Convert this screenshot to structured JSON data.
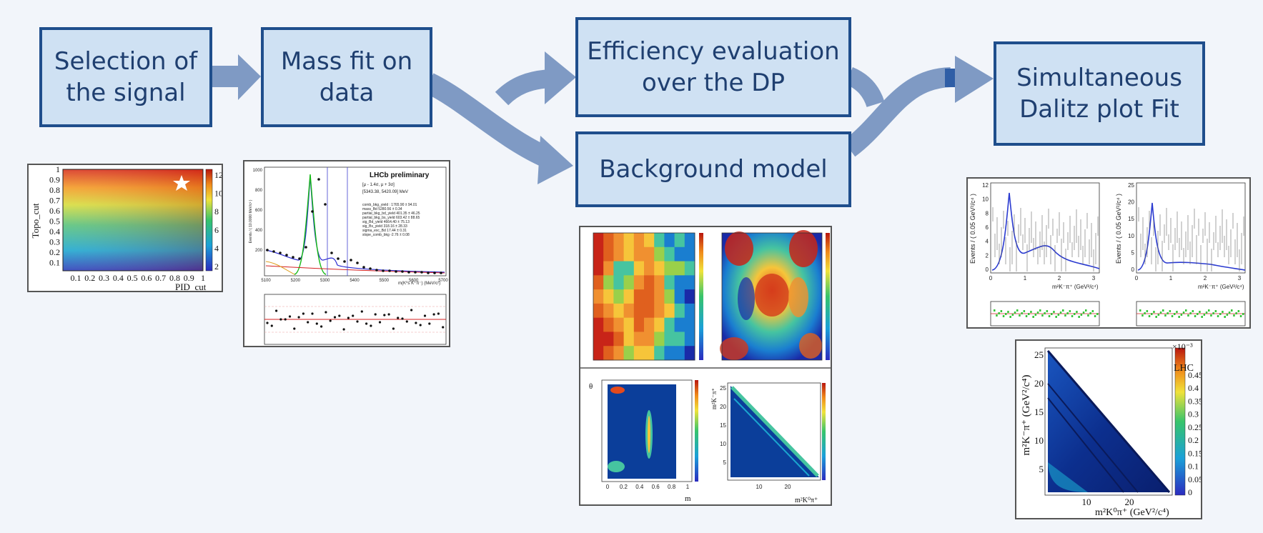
{
  "steps": {
    "selection": "Selection of\nthe signal",
    "mass_fit": "Mass fit on\ndata",
    "efficiency": "Efficiency evaluation\nover the DP",
    "background": "Background model",
    "dalitz_fit": "Simultaneous\nDalitz plot Fit"
  },
  "colors": {
    "box_fill": "#cfe1f3",
    "box_border": "#1f4e8c",
    "box_text": "#1f3f70",
    "arrow": "#7f9ac4"
  },
  "thumbnails": {
    "selection_plot": {
      "ylabel": "Topo_cut",
      "xlabel": "PID_cut",
      "yticks": [
        "1",
        "0.9",
        "0.8",
        "0.7",
        "0.6",
        "0.5",
        "0.4",
        "0.3",
        "0.2",
        "0.1"
      ],
      "xticks": [
        "0.1",
        "0.2",
        "0.3",
        "0.4",
        "0.5",
        "0.6",
        "0.7",
        "0.8",
        "0.9",
        "1"
      ],
      "zticks": [
        "12",
        "10",
        "8",
        "6",
        "4",
        "2"
      ]
    },
    "mass_fit_plot": {
      "legend_title": "LHCb preliminary",
      "ylabel": "Events / ( 10.0000 MeV/c² )",
      "xlabel": "m(K⁰s K⁺π⁻) (MeV/c²)",
      "xticks": [
        "5100",
        "5200",
        "5300",
        "5400",
        "5500",
        "5600",
        "5700"
      ],
      "yticks": [
        "1000",
        "800",
        "600",
        "400",
        "200"
      ],
      "legend_entries": [
        "[μ - 1.4σ, μ + 3σ]",
        "[5343.38, 5420.09] MeV"
      ],
      "params": [
        "comb_bkg_yield   : 1765.90 ± 94.01",
        "mass_Bd   5280.56 ± 0.34",
        "partial_bkg_bd_yield  401.35 ± 46.25",
        "partial_bkg_bs_yield  603.42 ± 88.65",
        "sig_Bd_yield   4664.40 ± 75.13",
        "sig_Bs_yield   318.16 ± 28.33",
        "sigma_exc_Bd   17.44 ± 0.31",
        "slope_comb_bkg  -2.76 ± 0.08"
      ]
    },
    "efficiency_plot": {
      "xlabel_bottom_left": "m",
      "ylabel_bottom_left": "θ",
      "xlabel_bottom_right": "m²K⁰π⁺",
      "ylabel_bottom_right": "m²K⁻π⁺",
      "ticks_unit": [
        "0",
        "0.1",
        "0.2",
        "0.3",
        "0.4",
        "0.5",
        "0.6",
        "0.7",
        "0.8",
        "0.9",
        "1"
      ],
      "ticks_m": [
        "0",
        "0.2",
        "0.4",
        "0.6",
        "0.8",
        "1"
      ],
      "ticks_mass": [
        "10",
        "20"
      ],
      "yticks_mass": [
        "25",
        "20",
        "15",
        "10",
        "5"
      ]
    },
    "dalitz_fit_plots": {
      "ylabel": "Events / ( 0.05 GeV²/c⁴ )",
      "xlabel": "m²K⁻π⁺ (GeV²/c⁴)",
      "left_yticks": [
        "12",
        "10",
        "8",
        "6",
        "4",
        "2",
        "0"
      ],
      "right_yticks": [
        "25",
        "20",
        "15",
        "10",
        "5",
        "0"
      ],
      "xticks": [
        "0",
        "1",
        "2",
        "3"
      ]
    },
    "dalitz_result_plot": {
      "ylabel": "m²K⁻π⁺ (GeV²/c⁴)",
      "xlabel": "m²K⁰π⁺ (GeV²/c⁴)",
      "yticks": [
        "25",
        "20",
        "15",
        "10",
        "5"
      ],
      "xticks": [
        "10",
        "20"
      ],
      "zlabel": "×10⁻³",
      "ztext": "LHC",
      "zticks": [
        "0.45",
        "0.4",
        "0.35",
        "0.3",
        "0.25",
        "0.2",
        "0.15",
        "0.1",
        "0.05",
        "0"
      ]
    }
  }
}
